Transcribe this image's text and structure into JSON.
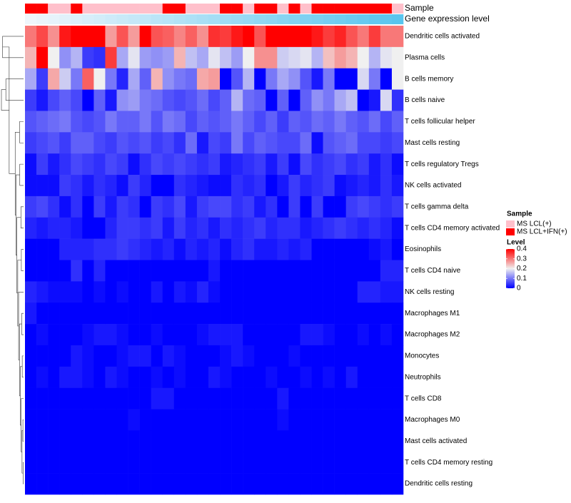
{
  "chart_data": {
    "type": "heatmap",
    "annotations": {
      "sample": {
        "label": "Sample",
        "values": [
          "IFN",
          "IFN",
          "LCL",
          "LCL",
          "IFN",
          "LCL",
          "LCL",
          "LCL",
          "LCL",
          "LCL",
          "LCL",
          "LCL",
          "IFN",
          "IFN",
          "LCL",
          "LCL",
          "LCL",
          "IFN",
          "IFN",
          "LCL",
          "IFN",
          "IFN",
          "LCL",
          "IFN",
          "LCL",
          "IFN",
          "IFN",
          "IFN",
          "IFN",
          "IFN",
          "IFN",
          "IFN",
          "LCL"
        ]
      },
      "gene_expression": {
        "label": "Gene expression level",
        "values": [
          0.02,
          0.05,
          0.08,
          0.11,
          0.14,
          0.17,
          0.2,
          0.23,
          0.26,
          0.29,
          0.32,
          0.35,
          0.38,
          0.41,
          0.44,
          0.47,
          0.5,
          0.53,
          0.56,
          0.59,
          0.62,
          0.65,
          0.68,
          0.71,
          0.74,
          0.77,
          0.8,
          0.83,
          0.86,
          0.89,
          0.92,
          0.95,
          0.98
        ],
        "colors": {
          "low": "#f2f7fc",
          "high": "#56c4ee"
        }
      }
    },
    "rows": [
      "Dendritic cells activated",
      "Plasma cells",
      "B cells memory",
      "B cells naive",
      "T cells follicular helper",
      "Mast cells resting",
      "T cells regulatory  Tregs",
      "NK cells activated",
      "T cells gamma delta",
      "T cells CD4 memory activated",
      "Eosinophils",
      "T cells CD4 naive",
      "NK cells resting",
      "Macrophages M1",
      "Macrophages M2",
      "Monocytes",
      "Neutrophils",
      "T cells CD8",
      "Macrophages M0",
      "Mast cells activated",
      "T cells CD4 memory resting",
      "Dendritic cells resting"
    ],
    "values": [
      [
        0.3,
        0.34,
        0.28,
        0.38,
        0.4,
        0.4,
        0.4,
        0.27,
        0.33,
        0.27,
        0.4,
        0.33,
        0.32,
        0.29,
        0.32,
        0.28,
        0.36,
        0.35,
        0.38,
        0.4,
        0.33,
        0.4,
        0.4,
        0.4,
        0.4,
        0.38,
        0.35,
        0.37,
        0.33,
        0.3,
        0.35,
        0.3,
        0.3
      ],
      [
        0.25,
        0.4,
        0.2,
        0.12,
        0.15,
        0.05,
        0.04,
        0.35,
        0.14,
        0.19,
        0.13,
        0.12,
        0.13,
        0.25,
        0.16,
        0.14,
        0.19,
        0.16,
        0.13,
        0.2,
        0.28,
        0.28,
        0.17,
        0.18,
        0.19,
        0.15,
        0.24,
        0.27,
        0.25,
        0.2,
        0.15,
        0.19,
        0.2
      ],
      [
        0.14,
        0.05,
        0.26,
        0.17,
        0.1,
        0.32,
        0.2,
        0.1,
        0.03,
        0.14,
        0.08,
        0.25,
        0.12,
        0.1,
        0.09,
        0.26,
        0.27,
        0.0,
        0.07,
        0.15,
        0.0,
        0.1,
        0.14,
        0.12,
        0.07,
        0.02,
        0.1,
        0.0,
        0.0,
        0.18,
        0.1,
        0.0,
        0.2
      ],
      [
        0.05,
        0.02,
        0.06,
        0.08,
        0.06,
        0.0,
        0.08,
        0.02,
        0.12,
        0.13,
        0.1,
        0.09,
        0.07,
        0.06,
        0.07,
        0.09,
        0.06,
        0.08,
        0.15,
        0.09,
        0.08,
        0.0,
        0.08,
        0.0,
        0.08,
        0.12,
        0.1,
        0.14,
        0.16,
        0.0,
        0.02,
        0.18,
        0.04
      ],
      [
        0.07,
        0.08,
        0.09,
        0.1,
        0.07,
        0.06,
        0.07,
        0.1,
        0.08,
        0.08,
        0.1,
        0.07,
        0.1,
        0.09,
        0.06,
        0.08,
        0.07,
        0.08,
        0.1,
        0.08,
        0.06,
        0.08,
        0.05,
        0.08,
        0.07,
        0.09,
        0.08,
        0.1,
        0.08,
        0.07,
        0.09,
        0.06,
        0.08
      ],
      [
        0.05,
        0.06,
        0.07,
        0.05,
        0.08,
        0.08,
        0.06,
        0.05,
        0.07,
        0.06,
        0.07,
        0.05,
        0.06,
        0.04,
        0.09,
        0.02,
        0.06,
        0.05,
        0.1,
        0.06,
        0.08,
        0.07,
        0.06,
        0.06,
        0.09,
        0.01,
        0.07,
        0.08,
        0.09,
        0.06,
        0.06,
        0.05,
        0.06
      ],
      [
        0.01,
        0.05,
        0.02,
        0.04,
        0.06,
        0.05,
        0.04,
        0.06,
        0.05,
        0.01,
        0.04,
        0.06,
        0.05,
        0.06,
        0.05,
        0.04,
        0.05,
        0.02,
        0.03,
        0.04,
        0.05,
        0.02,
        0.05,
        0.01,
        0.06,
        0.04,
        0.05,
        0.06,
        0.04,
        0.05,
        0.02,
        0.04,
        0.01
      ],
      [
        0.01,
        0.01,
        0.01,
        0.05,
        0.04,
        0.02,
        0.04,
        0.03,
        0.01,
        0.05,
        0.03,
        0.0,
        0.0,
        0.04,
        0.03,
        0.02,
        0.01,
        0.01,
        0.04,
        0.03,
        0.04,
        0.0,
        0.02,
        0.05,
        0.03,
        0.04,
        0.05,
        0.01,
        0.02,
        0.03,
        0.02,
        0.04,
        0.02
      ],
      [
        0.05,
        0.06,
        0.04,
        0.01,
        0.04,
        0.0,
        0.05,
        0.02,
        0.05,
        0.04,
        0.0,
        0.05,
        0.04,
        0.06,
        0.02,
        0.05,
        0.06,
        0.06,
        0.04,
        0.05,
        0.02,
        0.04,
        0.0,
        0.05,
        0.0,
        0.05,
        0.0,
        0.0,
        0.05,
        0.06,
        0.05,
        0.04,
        0.05
      ],
      [
        0.03,
        0.02,
        0.03,
        0.03,
        0.02,
        0.0,
        0.0,
        0.03,
        0.05,
        0.05,
        0.04,
        0.05,
        0.02,
        0.05,
        0.03,
        0.04,
        0.02,
        0.04,
        0.03,
        0.04,
        0.05,
        0.03,
        0.04,
        0.04,
        0.02,
        0.03,
        0.04,
        0.05,
        0.04,
        0.03,
        0.04,
        0.03,
        0.01
      ],
      [
        0.0,
        0.0,
        0.0,
        0.03,
        0.03,
        0.03,
        0.04,
        0.04,
        0.05,
        0.04,
        0.03,
        0.02,
        0.03,
        0.01,
        0.03,
        0.02,
        0.03,
        0.01,
        0.03,
        0.04,
        0.02,
        0.02,
        0.03,
        0.02,
        0.03,
        0.0,
        0.0,
        0.0,
        0.0,
        0.0,
        0.01,
        0.02,
        0.0
      ],
      [
        0.0,
        0.0,
        0.0,
        0.0,
        0.04,
        0.0,
        0.03,
        0.0,
        0.0,
        0.0,
        0.0,
        0.0,
        0.0,
        0.0,
        0.0,
        0.0,
        0.02,
        0.0,
        0.0,
        0.0,
        0.0,
        0.0,
        0.0,
        0.0,
        0.0,
        0.0,
        0.0,
        0.0,
        0.0,
        0.0,
        0.0,
        0.03,
        0.03
      ],
      [
        0.03,
        0.02,
        0.01,
        0.01,
        0.01,
        0.0,
        0.01,
        0.0,
        0.01,
        0.0,
        0.0,
        0.02,
        0.0,
        0.02,
        0.01,
        0.03,
        0.01,
        0.0,
        0.0,
        0.0,
        0.0,
        0.0,
        0.0,
        0.0,
        0.0,
        0.0,
        0.0,
        0.0,
        0.0,
        0.03,
        0.03,
        0.02,
        0.02
      ],
      [
        0.02,
        0.0,
        0.0,
        0.0,
        0.0,
        0.0,
        0.0,
        0.0,
        0.0,
        0.0,
        0.0,
        0.0,
        0.0,
        0.0,
        0.0,
        0.0,
        0.0,
        0.0,
        0.0,
        0.0,
        0.0,
        0.0,
        0.0,
        0.0,
        0.0,
        0.0,
        0.0,
        0.0,
        0.0,
        0.0,
        0.0,
        0.0,
        0.0
      ],
      [
        0.0,
        0.01,
        0.0,
        0.0,
        0.0,
        0.01,
        0.02,
        0.02,
        0.01,
        0.0,
        0.0,
        0.01,
        0.0,
        0.0,
        0.0,
        0.01,
        0.02,
        0.02,
        0.02,
        0.0,
        0.0,
        0.0,
        0.0,
        0.0,
        0.02,
        0.02,
        0.01,
        0.0,
        0.0,
        0.01,
        0.0,
        0.01,
        0.0
      ],
      [
        0.0,
        0.0,
        0.0,
        0.0,
        0.02,
        0.01,
        0.0,
        0.0,
        0.01,
        0.02,
        0.02,
        0.0,
        0.02,
        0.01,
        0.0,
        0.0,
        0.0,
        0.01,
        0.02,
        0.01,
        0.0,
        0.0,
        0.0,
        0.01,
        0.0,
        0.0,
        0.0,
        0.0,
        0.0,
        0.0,
        0.0,
        0.0,
        0.0
      ],
      [
        0.0,
        0.01,
        0.0,
        0.02,
        0.02,
        0.01,
        0.0,
        0.02,
        0.01,
        0.0,
        0.0,
        0.01,
        0.0,
        0.01,
        0.0,
        0.0,
        0.02,
        0.01,
        0.0,
        0.0,
        0.0,
        0.01,
        0.0,
        0.0,
        0.01,
        0.0,
        0.01,
        0.0,
        0.02,
        0.0,
        0.0,
        0.0,
        0.0
      ],
      [
        0.0,
        0.0,
        0.0,
        0.0,
        0.0,
        0.0,
        0.0,
        0.0,
        0.0,
        0.0,
        0.0,
        0.02,
        0.02,
        0.0,
        0.0,
        0.0,
        0.0,
        0.0,
        0.0,
        0.0,
        0.0,
        0.0,
        0.02,
        0.0,
        0.0,
        0.0,
        0.0,
        0.0,
        0.0,
        0.0,
        0.0,
        0.0,
        0.0
      ],
      [
        0.0,
        0.0,
        0.0,
        0.0,
        0.0,
        0.0,
        0.0,
        0.0,
        0.0,
        0.01,
        0.0,
        0.0,
        0.0,
        0.0,
        0.0,
        0.0,
        0.0,
        0.0,
        0.0,
        0.0,
        0.0,
        0.0,
        0.01,
        0.0,
        0.0,
        0.0,
        0.0,
        0.0,
        0.0,
        0.0,
        0.0,
        0.0,
        0.0
      ],
      [
        0.0,
        0.0,
        0.0,
        0.0,
        0.0,
        0.0,
        0.0,
        0.0,
        0.0,
        0.0,
        0.0,
        0.0,
        0.0,
        0.0,
        0.0,
        0.0,
        0.0,
        0.0,
        0.0,
        0.0,
        0.0,
        0.0,
        0.0,
        0.0,
        0.0,
        0.0,
        0.0,
        0.0,
        0.0,
        0.0,
        0.0,
        0.0,
        0.0
      ],
      [
        0.0,
        0.0,
        0.0,
        0.0,
        0.0,
        0.0,
        0.0,
        0.0,
        0.0,
        0.0,
        0.0,
        0.0,
        0.0,
        0.0,
        0.0,
        0.0,
        0.0,
        0.0,
        0.0,
        0.0,
        0.0,
        0.0,
        0.0,
        0.0,
        0.0,
        0.0,
        0.0,
        0.0,
        0.0,
        0.0,
        0.0,
        0.0,
        0.0
      ],
      [
        0.0,
        0.0,
        0.0,
        0.0,
        0.0,
        0.0,
        0.0,
        0.0,
        0.0,
        0.0,
        0.0,
        0.0,
        0.0,
        0.0,
        0.0,
        0.0,
        0.0,
        0.0,
        0.0,
        0.0,
        0.0,
        0.0,
        0.0,
        0.0,
        0.0,
        0.0,
        0.0,
        0.0,
        0.0,
        0.0,
        0.0,
        0.0,
        0.0
      ]
    ],
    "legend": {
      "sample_title": "Sample",
      "sample_entries": [
        {
          "key": "LCL",
          "label": "MS LCL(+)",
          "color": "#ffc0cb"
        },
        {
          "key": "IFN",
          "label": "MS LCL+IFN(+)",
          "color": "#ff0000"
        }
      ],
      "level_title": "Level",
      "level_ticks": [
        {
          "value": 0.4,
          "label": "0.4"
        },
        {
          "value": 0.3,
          "label": "0.3"
        },
        {
          "value": 0.2,
          "label": "0.2"
        },
        {
          "value": 0.1,
          "label": "0.1"
        },
        {
          "value": 0.0,
          "label": "0"
        }
      ],
      "placement": "right"
    },
    "color_scale": {
      "range": [
        0,
        0.4
      ],
      "stops": [
        {
          "value": 0.0,
          "color": "#0000ff"
        },
        {
          "value": 0.2,
          "color": "#f0f0f0"
        },
        {
          "value": 0.4,
          "color": "#ff0000"
        }
      ]
    },
    "dendrogram_merges": [
      [
        0,
        1,
        0.95
      ],
      [
        2,
        3,
        0.8
      ],
      [
        4,
        5,
        0.18
      ],
      [
        6,
        7,
        0.17
      ],
      [
        8,
        9,
        0.12
      ],
      [
        10,
        11,
        0.1
      ],
      [
        13,
        14,
        0.08
      ],
      [
        15,
        16,
        0.06
      ],
      [
        18,
        19,
        0.03
      ],
      [
        20,
        21,
        0.02
      ]
    ]
  }
}
